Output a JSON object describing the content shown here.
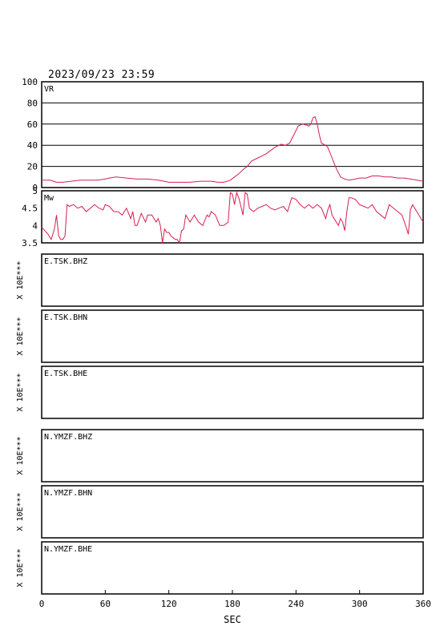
{
  "timestamp": "2023/09/23 23:59",
  "x_axis": {
    "label": "SEC",
    "ticks": [
      "0",
      "60",
      "120",
      "180",
      "240",
      "300",
      "360"
    ]
  },
  "chart_data": [
    {
      "type": "line",
      "panel_label": "VR",
      "xlim": [
        0,
        360
      ],
      "ylim": [
        0,
        100
      ],
      "yticks": [
        0,
        20,
        40,
        60,
        80,
        100
      ],
      "grid": true,
      "series_color": "#d6204f",
      "x": [
        0,
        8,
        14,
        20,
        28,
        36,
        44,
        52,
        60,
        64,
        70,
        80,
        90,
        100,
        110,
        120,
        130,
        140,
        150,
        160,
        166,
        172,
        178,
        182,
        186,
        190,
        194,
        198,
        204,
        208,
        212,
        216,
        220,
        226,
        230,
        234,
        238,
        242,
        246,
        250,
        252,
        254,
        256,
        258,
        260,
        262,
        264,
        266,
        268,
        270,
        274,
        278,
        282,
        286,
        290,
        296,
        300,
        306,
        312,
        318,
        324,
        330,
        336,
        342,
        348,
        354,
        360
      ],
      "values": [
        7,
        7,
        5,
        5,
        6,
        7,
        7,
        7,
        8,
        9,
        10,
        9,
        8,
        8,
        7,
        5,
        5,
        5,
        6,
        6,
        5,
        5,
        7,
        10,
        13,
        17,
        20,
        25,
        28,
        30,
        32,
        35,
        38,
        41,
        40,
        42,
        50,
        58,
        60,
        59,
        58,
        60,
        66,
        67,
        60,
        50,
        42,
        41,
        40,
        38,
        28,
        18,
        10,
        8,
        7,
        8,
        9,
        9,
        11,
        11,
        10,
        10,
        9,
        9,
        8,
        7,
        6
      ]
    },
    {
      "type": "line",
      "panel_label": "Mw",
      "xlim": [
        0,
        360
      ],
      "ylim": [
        3.5,
        5.0
      ],
      "yticks": [
        3.5,
        4.0,
        4.5,
        5.0
      ],
      "grid": false,
      "series_color": "#d6204f",
      "x": [
        0,
        3,
        6,
        9,
        12,
        14,
        16,
        18,
        20,
        22,
        24,
        26,
        30,
        34,
        38,
        42,
        46,
        50,
        54,
        58,
        60,
        64,
        68,
        72,
        76,
        80,
        84,
        86,
        88,
        90,
        94,
        98,
        100,
        104,
        108,
        110,
        112,
        114,
        116,
        118,
        120,
        122,
        124,
        126,
        128,
        130,
        132,
        134,
        136,
        138,
        140,
        144,
        148,
        152,
        156,
        158,
        160,
        164,
        168,
        172,
        176,
        178,
        180,
        182,
        184,
        186,
        188,
        190,
        192,
        194,
        196,
        200,
        204,
        208,
        212,
        216,
        220,
        224,
        228,
        232,
        236,
        240,
        244,
        248,
        252,
        256,
        260,
        264,
        268,
        270,
        272,
        274,
        276,
        278,
        280,
        282,
        284,
        286,
        288,
        290,
        292,
        296,
        300,
        304,
        308,
        312,
        316,
        320,
        324,
        328,
        332,
        336,
        340,
        344,
        346,
        348,
        350,
        352,
        354,
        356,
        358,
        360
      ],
      "values": [
        3.95,
        3.85,
        3.75,
        3.6,
        3.9,
        4.3,
        3.7,
        3.6,
        3.6,
        3.7,
        4.6,
        4.55,
        4.6,
        4.5,
        4.55,
        4.4,
        4.5,
        4.6,
        4.5,
        4.45,
        4.6,
        4.55,
        4.4,
        4.4,
        4.3,
        4.5,
        4.2,
        4.4,
        4.0,
        4.0,
        4.35,
        4.1,
        4.3,
        4.3,
        4.1,
        4.2,
        4.0,
        3.5,
        3.9,
        3.8,
        3.8,
        3.7,
        3.65,
        3.6,
        3.6,
        3.5,
        3.85,
        3.9,
        4.3,
        4.2,
        4.1,
        4.3,
        4.1,
        4.0,
        4.3,
        4.25,
        4.4,
        4.3,
        4.0,
        4.0,
        4.1,
        4.95,
        4.9,
        4.6,
        4.95,
        4.8,
        4.55,
        4.3,
        4.95,
        4.9,
        4.5,
        4.4,
        4.5,
        4.55,
        4.6,
        4.5,
        4.45,
        4.5,
        4.55,
        4.4,
        4.8,
        4.75,
        4.6,
        4.5,
        4.6,
        4.5,
        4.6,
        4.5,
        4.2,
        4.45,
        4.6,
        4.3,
        4.2,
        4.1,
        4.0,
        4.2,
        4.1,
        3.85,
        4.4,
        4.8,
        4.8,
        4.75,
        4.6,
        4.55,
        4.5,
        4.6,
        4.4,
        4.3,
        4.2,
        4.6,
        4.5,
        4.4,
        4.3,
        3.95,
        3.75,
        4.45,
        4.6,
        4.5,
        4.4,
        4.3,
        4.2,
        4.1
      ]
    }
  ],
  "waveform_panels": [
    {
      "station": "E.TSK.BHZ",
      "scale_label": "X 10E***"
    },
    {
      "station": "E.TSK.BHN",
      "scale_label": "X 10E***"
    },
    {
      "station": "E.TSK.BHE",
      "scale_label": "X 10E***"
    },
    {
      "station": "N.YMZF.BHZ",
      "scale_label": "X 10E***"
    },
    {
      "station": "N.YMZF.BHN",
      "scale_label": "X 10E***"
    },
    {
      "station": "N.YMZF.BHE",
      "scale_label": "X 10E***"
    }
  ]
}
